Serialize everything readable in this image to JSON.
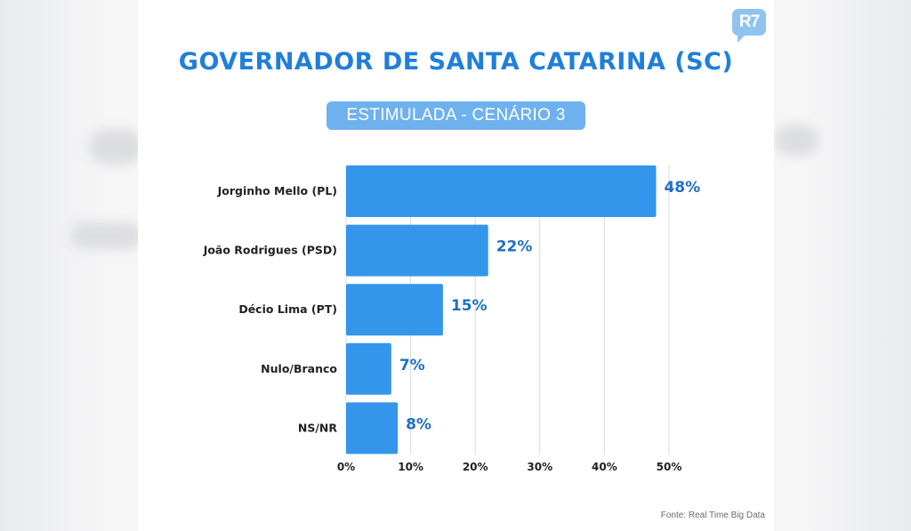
{
  "logo": {
    "text": "R7"
  },
  "chart_data": {
    "type": "bar",
    "orientation": "horizontal",
    "title": "GOVERNADOR DE SANTA CATARINA (SC)",
    "subtitle": "ESTIMULADA - CENÁRIO 3",
    "categories": [
      "Jorginho Mello (PL)",
      "João Rodrigues (PSD)",
      "Décio Lima (PT)",
      "Nulo/Branco",
      "NS/NR"
    ],
    "values": [
      48,
      22,
      15,
      7,
      8
    ],
    "data_labels": [
      "48%",
      "22%",
      "15%",
      "7%",
      "8%"
    ],
    "xlim": [
      0,
      50
    ],
    "x_ticks": [
      0,
      10,
      20,
      30,
      40,
      50
    ],
    "x_tick_labels": [
      "0%",
      "10%",
      "20%",
      "30%",
      "40%",
      "50%"
    ],
    "grid": true,
    "legend": "none",
    "colors": {
      "bar": "#3396ea",
      "title": "#1f7fd9",
      "label": "#1f6fc4",
      "grid": "#d9d9d9"
    }
  },
  "footer": {
    "source": "Fonte: Real Time Big Data"
  }
}
